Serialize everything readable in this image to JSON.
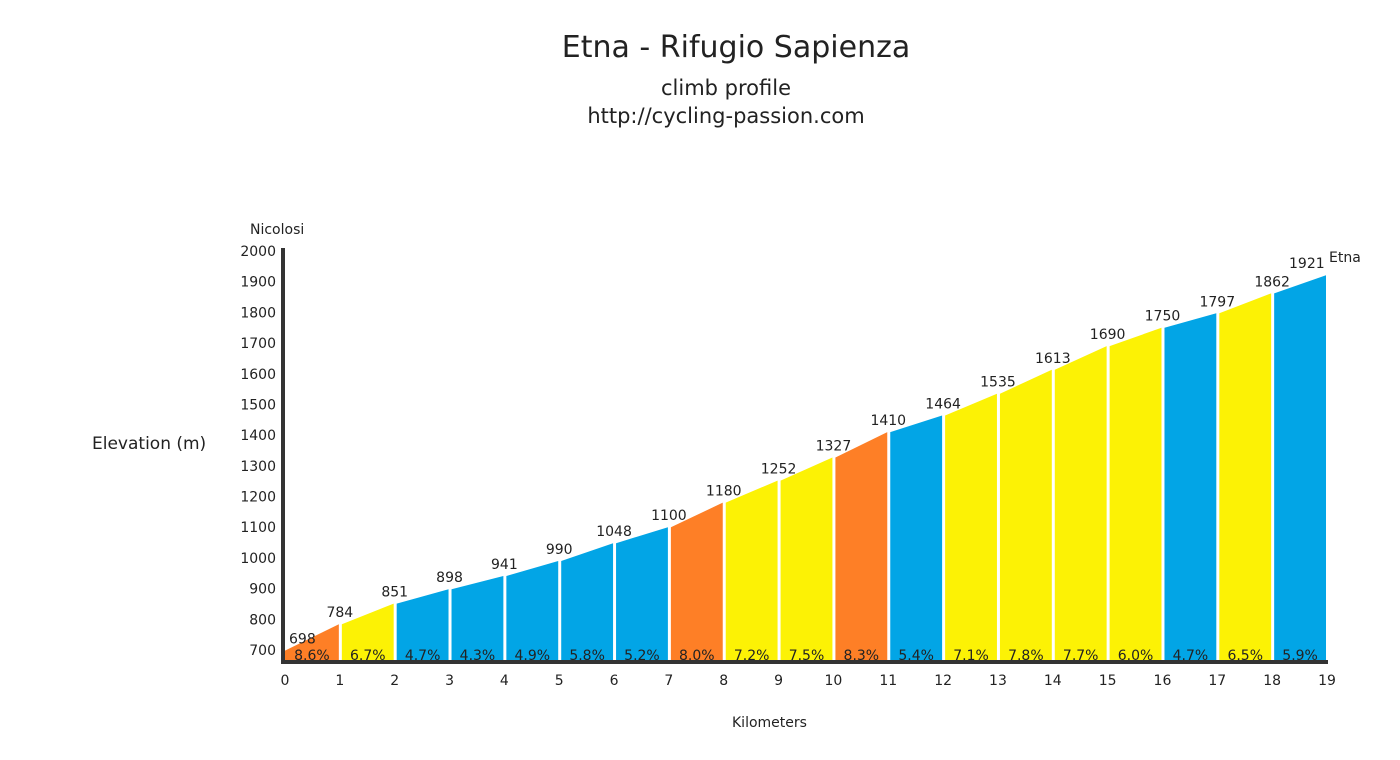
{
  "title": "Etna - Rifugio Sapienza",
  "subtitle": "climb profile",
  "url": "http://cycling-passion.com",
  "start_label": "Nicolosi",
  "colors": {
    "orange": "#fe7f26",
    "yellow": "#fcf205",
    "blue": "#02a5e6",
    "axis": "#333333"
  },
  "chart_data": {
    "type": "area",
    "xlabel": "Kilometers",
    "ylabel": "Elevation (m)",
    "xlim": [
      0,
      19
    ],
    "ylim": [
      650,
      2000
    ],
    "y_ticks": [
      700,
      800,
      900,
      1000,
      1100,
      1200,
      1300,
      1400,
      1500,
      1600,
      1700,
      1800,
      1900,
      2000
    ],
    "x_ticks": [
      0,
      1,
      2,
      3,
      4,
      5,
      6,
      7,
      8,
      9,
      10,
      11,
      12,
      13,
      14,
      15,
      16,
      17,
      18,
      19
    ],
    "elevation_labels": [
      "698",
      "784",
      "851",
      "898",
      "941",
      "990",
      "1048",
      "1100",
      "1180",
      "1252",
      "1327",
      "1410",
      "1464",
      "1535",
      "1613",
      "1690",
      "1750",
      "1797",
      "1862",
      "1921"
    ],
    "end_label": "Etna",
    "segments": [
      {
        "km": 1,
        "start": 698,
        "end": 784,
        "grade": "8.6%",
        "color": "orange"
      },
      {
        "km": 2,
        "start": 784,
        "end": 851,
        "grade": "6.7%",
        "color": "yellow"
      },
      {
        "km": 3,
        "start": 851,
        "end": 898,
        "grade": "4.7%",
        "color": "blue"
      },
      {
        "km": 4,
        "start": 898,
        "end": 941,
        "grade": "4.3%",
        "color": "blue"
      },
      {
        "km": 5,
        "start": 941,
        "end": 990,
        "grade": "4.9%",
        "color": "blue"
      },
      {
        "km": 6,
        "start": 990,
        "end": 1048,
        "grade": "5.8%",
        "color": "blue"
      },
      {
        "km": 7,
        "start": 1048,
        "end": 1100,
        "grade": "5.2%",
        "color": "blue"
      },
      {
        "km": 8,
        "start": 1100,
        "end": 1180,
        "grade": "8.0%",
        "color": "orange"
      },
      {
        "km": 9,
        "start": 1180,
        "end": 1252,
        "grade": "7.2%",
        "color": "yellow"
      },
      {
        "km": 10,
        "start": 1252,
        "end": 1327,
        "grade": "7.5%",
        "color": "yellow"
      },
      {
        "km": 11,
        "start": 1327,
        "end": 1410,
        "grade": "8.3%",
        "color": "orange"
      },
      {
        "km": 12,
        "start": 1410,
        "end": 1464,
        "grade": "5.4%",
        "color": "blue"
      },
      {
        "km": 13,
        "start": 1464,
        "end": 1535,
        "grade": "7.1%",
        "color": "yellow"
      },
      {
        "km": 14,
        "start": 1535,
        "end": 1613,
        "grade": "7.8%",
        "color": "yellow"
      },
      {
        "km": 15,
        "start": 1613,
        "end": 1690,
        "grade": "7.7%",
        "color": "yellow"
      },
      {
        "km": 16,
        "start": 1690,
        "end": 1750,
        "grade": "6.0%",
        "color": "yellow"
      },
      {
        "km": 17,
        "start": 1750,
        "end": 1797,
        "grade": "4.7%",
        "color": "blue"
      },
      {
        "km": 18,
        "start": 1797,
        "end": 1862,
        "grade": "6.5%",
        "color": "yellow"
      },
      {
        "km": 19,
        "start": 1862,
        "end": 1921,
        "grade": "5.9%",
        "color": "blue"
      }
    ]
  }
}
